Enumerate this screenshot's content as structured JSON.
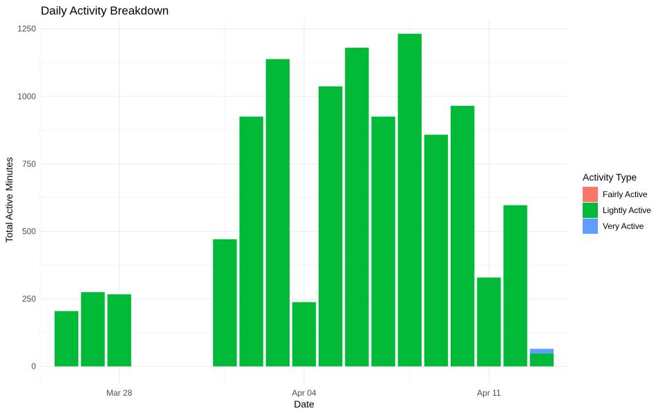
{
  "chart_data": {
    "type": "bar",
    "stacked": true,
    "title": "Daily Activity Breakdown",
    "xlabel": "Date",
    "ylabel": "Total Active Minutes",
    "x_axis_type": "date",
    "xlim": [
      "2024-03-25",
      "2024-04-14"
    ],
    "ylim": [
      -65,
      1280
    ],
    "x_ticks": [
      {
        "date": "2024-03-28",
        "label": "Mar 28"
      },
      {
        "date": "2024-04-04",
        "label": "Apr 04"
      },
      {
        "date": "2024-04-11",
        "label": "Apr 11"
      }
    ],
    "x_minor_ticks": [
      "2024-03-25",
      "2024-04-01",
      "2024-04-08"
    ],
    "y_ticks": [
      0,
      250,
      500,
      750,
      1000,
      1250
    ],
    "grid": true,
    "legend": {
      "title": "Activity Type",
      "position": "right"
    },
    "series": [
      {
        "name": "Fairly Active",
        "color": "#F8766D",
        "values": [
          0,
          0,
          0,
          0,
          0,
          0,
          0,
          0,
          0,
          0,
          0,
          0,
          0,
          0,
          0,
          0,
          0,
          0,
          0
        ]
      },
      {
        "name": "Lightly Active",
        "color": "#00BA38",
        "values": [
          205,
          275,
          267,
          0,
          0,
          0,
          471,
          925,
          1138,
          238,
          1037,
          1180,
          925,
          1232,
          858,
          965,
          329,
          597,
          48
        ]
      },
      {
        "name": "Very Active",
        "color": "#619CFF",
        "values": [
          0,
          0,
          0,
          0,
          0,
          0,
          0,
          0,
          0,
          0,
          0,
          0,
          0,
          0,
          0,
          0,
          0,
          0,
          17
        ]
      }
    ],
    "x": [
      "2024-03-26",
      "2024-03-27",
      "2024-03-28",
      "2024-03-29",
      "2024-03-30",
      "2024-03-31",
      "2024-04-01",
      "2024-04-02",
      "2024-04-03",
      "2024-04-04",
      "2024-04-05",
      "2024-04-06",
      "2024-04-07",
      "2024-04-08",
      "2024-04-09",
      "2024-04-10",
      "2024-04-11",
      "2024-04-12",
      "2024-04-13"
    ]
  }
}
